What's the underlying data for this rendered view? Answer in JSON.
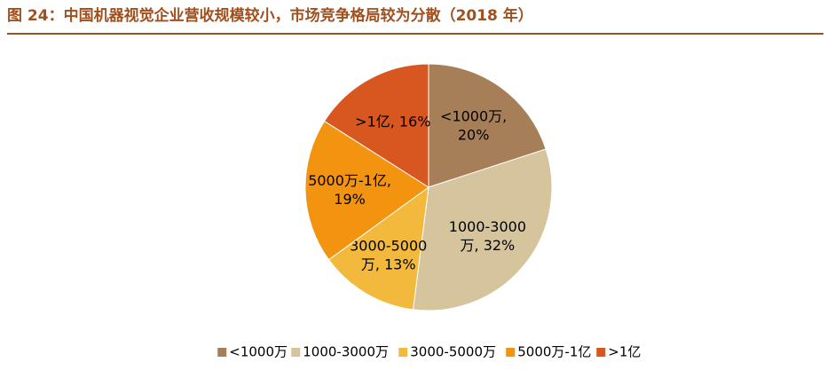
{
  "chart_data": {
    "type": "pie",
    "title": "图 24：中国机器视觉企业营收规模较小，市场竞争格局较为分散（2018 年）",
    "categories": [
      "<1000万",
      "1000-3000万",
      "3000-5000万",
      "5000万-1亿",
      ">1亿"
    ],
    "values": [
      20,
      32,
      13,
      19,
      16
    ],
    "value_labels": [
      "<1000万, 20%",
      "1000-3000万, 32%",
      "3000-5000万, 13%",
      "5000万-1亿, 19%",
      ">1亿, 16%"
    ],
    "colors": [
      "#a67f59",
      "#d5c49c",
      "#f3b93d",
      "#f39410",
      "#d8561f"
    ],
    "legend": "bottom"
  }
}
